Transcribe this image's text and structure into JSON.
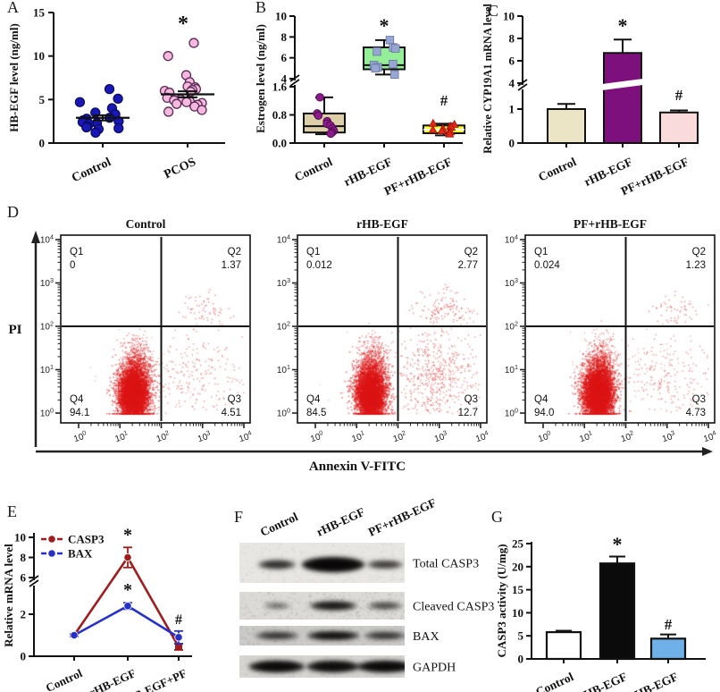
{
  "figure": {
    "background": "#ffffff",
    "point_color_flow": "#dc1616"
  },
  "chart_data": [
    {
      "panel": "A",
      "type": "scatter",
      "name": "HB-EGF serum level",
      "ylabel": "HB-EGF level (ng/ml)",
      "yticks": [
        0,
        5,
        10,
        15
      ],
      "ylim": [
        0,
        15
      ],
      "groups": [
        {
          "name": "Control",
          "marker": "circle",
          "color": "#1818b8",
          "edge": "#0c0c60",
          "mean": 2.9,
          "sem": 0.3,
          "sig": "",
          "points": [
            6.2,
            5.1,
            4.7,
            4.0,
            3.5,
            3.3,
            2.9,
            2.8,
            2.6,
            2.5,
            2.4,
            2.3,
            2.2,
            1.9,
            1.8,
            1.7,
            1.6,
            1.2
          ]
        },
        {
          "name": "PCOS",
          "marker": "circle",
          "color": "#f5b8de",
          "edge": "#5a2a56",
          "mean": 5.6,
          "sem": 0.35,
          "sig": "*",
          "points": [
            11.5,
            10.0,
            7.8,
            7.0,
            6.5,
            6.4,
            6.2,
            6.1,
            6.0,
            5.9,
            5.8,
            5.2,
            5.0,
            4.9,
            4.8,
            4.7,
            4.6,
            4.5,
            4.4,
            4.2,
            3.8,
            3.6
          ]
        }
      ]
    },
    {
      "panel": "B",
      "type": "box",
      "name": "Estrogen level",
      "ylabel": "Estrogen level (ng/ml)",
      "yticks_lower": [
        [
          0,
          "0.0"
        ],
        [
          0.8,
          "0.8"
        ],
        [
          1.6,
          "1.6"
        ]
      ],
      "yticks_upper": [
        [
          4,
          "4"
        ],
        [
          6,
          "6"
        ],
        [
          8,
          "8"
        ],
        [
          10,
          "10"
        ]
      ],
      "axis_break": [
        1.6,
        4
      ],
      "groups": [
        {
          "name": "Control",
          "fill": "#ddd0a8",
          "marker": "circle",
          "marker_color": "#8b1b8b",
          "sig": "",
          "box": {
            "lo": 0.25,
            "q1": 0.3,
            "median": 0.48,
            "q3": 0.84,
            "hi": 1.3
          },
          "points": [
            1.3,
            0.84,
            0.78,
            0.62,
            0.55,
            0.5,
            0.42,
            0.35,
            0.3,
            0.27
          ]
        },
        {
          "name": "rHB-EGF",
          "fill": "#95ef97",
          "marker": "square",
          "marker_color": "#98a6d4",
          "sig": "*",
          "box": {
            "lo": 4.4,
            "q1": 4.9,
            "median": 5.3,
            "q3": 7.0,
            "hi": 7.7
          },
          "points": [
            7.7,
            7.0,
            6.9,
            6.6,
            5.4,
            5.3,
            5.1,
            5.0,
            4.4
          ]
        },
        {
          "name": "PF+rHB-EGF",
          "fill": "#ffff2e",
          "marker": "triangle",
          "marker_color": "#e52815",
          "sig": "#",
          "box": {
            "lo": 0.22,
            "q1": 0.28,
            "median": 0.38,
            "q3": 0.5,
            "hi": 0.55
          },
          "points": [
            0.55,
            0.52,
            0.47,
            0.44,
            0.4,
            0.37,
            0.34,
            0.31,
            0.28,
            0.25
          ]
        }
      ]
    },
    {
      "panel": "C",
      "type": "bar",
      "name": "CYP19A1 mRNA",
      "ylabel": "Relative CYP19A1 mRNA level",
      "yticks_lower": [
        [
          0,
          "0"
        ],
        [
          1,
          "1"
        ]
      ],
      "yticks_upper": [
        [
          4,
          "4"
        ],
        [
          6,
          "6"
        ],
        [
          8,
          "8"
        ],
        [
          10,
          "10"
        ]
      ],
      "axis_break": [
        1,
        4
      ],
      "bars": [
        {
          "name": "Control",
          "value": 1.0,
          "error": 0.15,
          "fill": "#ece5c5",
          "sig": ""
        },
        {
          "name": "rHB-EGF",
          "value": 6.7,
          "error": 1.2,
          "fill": "#7e107e",
          "sig": "*"
        },
        {
          "name": "PF+rHB-EGF",
          "value": 0.9,
          "error": 0.06,
          "fill": "#fadbdb",
          "sig": "#"
        }
      ]
    },
    {
      "panel": "D",
      "type": "flow-cytometry",
      "name": "Annexin V-FITC / PI apoptosis",
      "xlabel": "Annexin V-FITC",
      "ylabel": "PI",
      "decades": [
        "0",
        "1",
        "2",
        "3",
        "4"
      ],
      "plots": [
        {
          "title": "Control",
          "quadrants": {
            "Q1": "0",
            "Q2": "1.37",
            "Q3": "4.51",
            "Q4": "94.1"
          }
        },
        {
          "title": "rHB-EGF",
          "quadrants": {
            "Q1": "0.012",
            "Q2": "2.77",
            "Q3": "12.7",
            "Q4": "84.5"
          }
        },
        {
          "title": "PF+rHB-EGF",
          "quadrants": {
            "Q1": "0.024",
            "Q2": "1.23",
            "Q3": "4.73",
            "Q4": "94.0"
          }
        }
      ]
    },
    {
      "panel": "E",
      "type": "line",
      "name": "CASP3 / BAX mRNA",
      "ylabel": "Relative mRNA level",
      "yticks": [
        [
          0,
          "0"
        ],
        [
          2,
          "2"
        ],
        [
          6,
          "6"
        ],
        [
          8,
          "8"
        ],
        [
          10,
          "10"
        ]
      ],
      "axis_break": [
        2,
        6
      ],
      "categories": [
        "Control",
        "rHB-EGF",
        "rHB-EGF+PF"
      ],
      "series": [
        {
          "name": "CASP3",
          "color": "#a01d1d",
          "values": [
            1,
            8,
            0.45
          ],
          "errors": [
            0.05,
            1.0,
            0.15
          ],
          "sig": [
            "",
            "*",
            ""
          ]
        },
        {
          "name": "BAX",
          "color": "#2531c9",
          "values": [
            1,
            2.9,
            0.9
          ],
          "errors": [
            0.06,
            0.35,
            0.3
          ],
          "sig": [
            "",
            "*",
            "#"
          ]
        }
      ]
    },
    {
      "panel": "F",
      "type": "western-blot",
      "name": "Apoptosis protein blots",
      "lanes": [
        "Control",
        "rHB-EGF",
        "PF+rHB-EGF"
      ],
      "rows": [
        {
          "name": "Total CASP3",
          "intensities": [
            0.55,
            1.0,
            0.45
          ]
        },
        {
          "name": "Cleaved CASP3",
          "intensities": [
            0.12,
            0.75,
            0.35
          ]
        },
        {
          "name": "BAX",
          "intensities": [
            0.5,
            0.85,
            0.5
          ]
        },
        {
          "name": "GAPDH",
          "intensities": [
            0.95,
            0.9,
            0.95
          ]
        }
      ]
    },
    {
      "panel": "G",
      "type": "bar",
      "name": "CASP3 activity",
      "ylabel": "CASP3 activity (U/mg)",
      "yticks": [
        [
          0,
          "0"
        ],
        [
          5,
          "5"
        ],
        [
          10,
          "10"
        ],
        [
          15,
          "15"
        ],
        [
          20,
          "20"
        ],
        [
          25,
          "25"
        ]
      ],
      "bars": [
        {
          "name": "Control",
          "value": 5.8,
          "error": 0.3,
          "fill": "#ffffff",
          "sig": ""
        },
        {
          "name": "rHB-EGF",
          "value": 20.7,
          "error": 1.5,
          "fill": "#0b0b0b",
          "sig": "*"
        },
        {
          "name": "PF+rHB-EGF",
          "value": 4.4,
          "error": 0.9,
          "fill": "#6fb0e8",
          "sig": "#"
        }
      ]
    }
  ]
}
